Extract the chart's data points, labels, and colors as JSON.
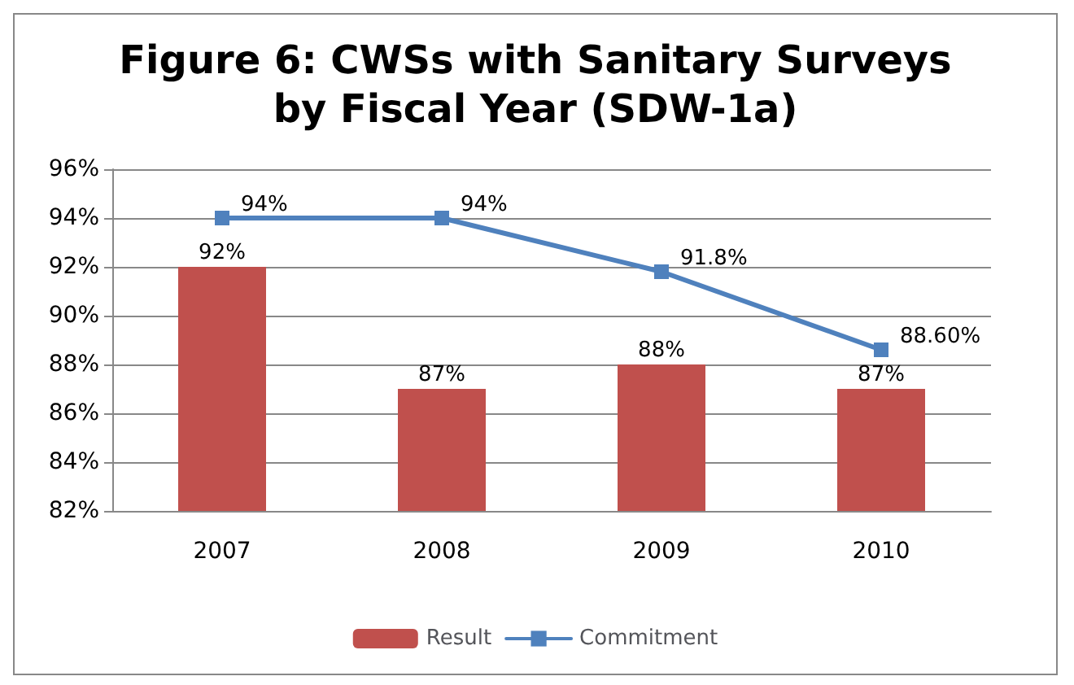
{
  "chart_data": {
    "type": "bar",
    "title": "Figure 6: CWSs with Sanitary Surveys\nby Fiscal Year (SDW-1a)",
    "categories": [
      "2007",
      "2008",
      "2009",
      "2010"
    ],
    "series": [
      {
        "name": "Result",
        "color": "#c0504d",
        "values": [
          92,
          87,
          88,
          87
        ],
        "value_labels": [
          "92%",
          "87%",
          "88%",
          "87%"
        ]
      },
      {
        "name": "Commitment",
        "type": "line",
        "color": "#4f81bd",
        "values": [
          94,
          94,
          91.8,
          88.6
        ],
        "value_labels": [
          "94%",
          "94%",
          "91.8%",
          "88.60%"
        ],
        "marker": "square",
        "line_style": "solid"
      }
    ],
    "ylim": [
      82,
      96
    ],
    "yticks": [
      {
        "value": 82,
        "label": "82%"
      },
      {
        "value": 84,
        "label": "84%"
      },
      {
        "value": 86,
        "label": "86%"
      },
      {
        "value": 88,
        "label": "88%"
      },
      {
        "value": 90,
        "label": "90%"
      },
      {
        "value": 92,
        "label": "92%"
      },
      {
        "value": 94,
        "label": "94%"
      },
      {
        "value": 96,
        "label": "96%"
      }
    ],
    "grid": "y",
    "legend": "bottom"
  }
}
